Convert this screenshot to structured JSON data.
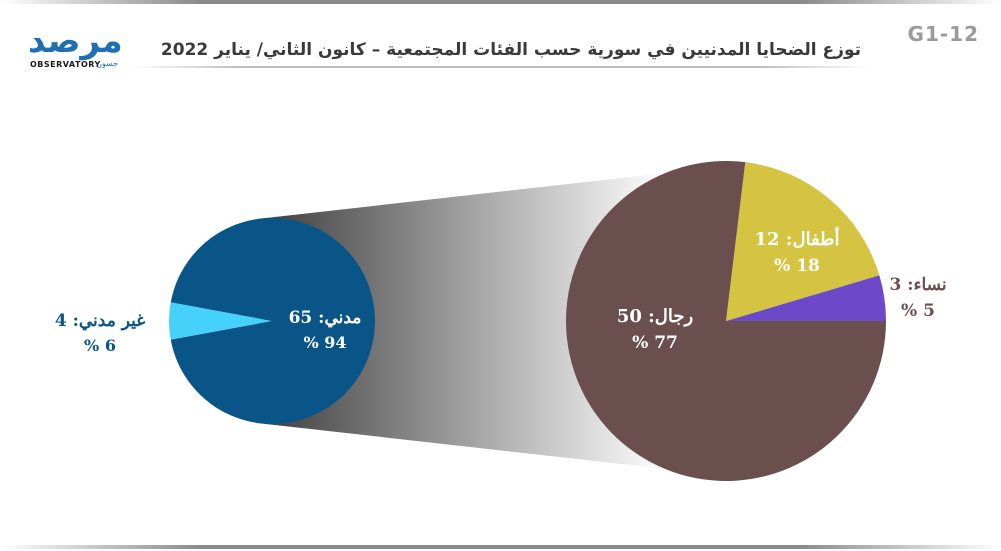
{
  "header": {
    "code": "G1-12",
    "title": "توزع الضحايا المدنيين في سورية حسب الفئات المجتمعية – كانون الثاني/ يناير 2022",
    "logo_main": "مرصد",
    "logo_sub": "OBSERVATORY",
    "logo_tag": "جسور"
  },
  "colors": {
    "civilian": "#0a5587",
    "non_civilian": "#45d1fa",
    "men": "#6b4f4f",
    "children": "#d4c441",
    "women": "#6c49c9"
  },
  "chart_data": [
    {
      "type": "pie",
      "slices": [
        {
          "name": "مدني",
          "value": 65,
          "percent": 94,
          "label": "مدني: 65",
          "pct_label": "94 %"
        },
        {
          "name": "غير مدني",
          "value": 4,
          "percent": 6,
          "label": "غير مدني: 4",
          "pct_label": "6 %"
        }
      ]
    },
    {
      "type": "pie",
      "slices": [
        {
          "name": "رجال",
          "value": 50,
          "percent": 77,
          "label": "رجال: 50",
          "pct_label": "77 %"
        },
        {
          "name": "أطفال",
          "value": 12,
          "percent": 18,
          "label": "أطفال: 12",
          "pct_label": "18 %"
        },
        {
          "name": "نساء",
          "value": 3,
          "percent": 5,
          "label": "نساء: 3",
          "pct_label": "5 %"
        }
      ]
    }
  ]
}
